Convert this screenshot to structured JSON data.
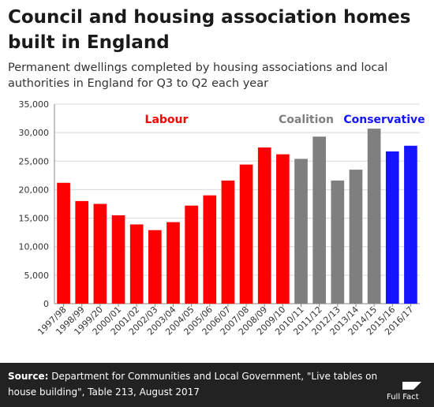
{
  "title": "Council and housing association homes built in England",
  "subtitle": "Permanent dwellings completed by housing associations and local authorities in England for Q3 to Q2 each year",
  "source": {
    "label": "Source:",
    "text": "Department for Communities and Local Government, \"Live tables on house building\", Table 213, August 2017"
  },
  "logo": {
    "text": "Full Fact"
  },
  "colors": {
    "Labour": "#ff0000",
    "Coalition": "#7f7f7f",
    "Conservative": "#1414ff"
  },
  "chart_data": {
    "type": "bar",
    "title": "",
    "xlabel": "",
    "ylabel": "",
    "ylim": [
      0,
      35000
    ],
    "yticks": [
      0,
      5000,
      10000,
      15000,
      20000,
      25000,
      30000,
      35000
    ],
    "ytick_labels": [
      "0",
      "5,000",
      "10,000",
      "15,000",
      "20,000",
      "25,000",
      "30,000",
      "35,000"
    ],
    "grid": "horizontal",
    "categories": [
      "1997/98",
      "1998/99",
      "1999/20",
      "2000/01",
      "2001/02",
      "2002/03",
      "2003/04",
      "2004/05",
      "2005/06",
      "2006/07",
      "2007/08",
      "2008/09",
      "2009/10",
      "2010/11",
      "2011/12",
      "2012/13",
      "2013/14",
      "2014/15",
      "2015/16",
      "2016/17"
    ],
    "values": [
      21200,
      18000,
      17500,
      15500,
      13900,
      12900,
      14300,
      17200,
      19000,
      21600,
      24400,
      27400,
      26200,
      25400,
      29300,
      21600,
      23500,
      30700,
      26700,
      27700
    ],
    "groups": [
      "Labour",
      "Labour",
      "Labour",
      "Labour",
      "Labour",
      "Labour",
      "Labour",
      "Labour",
      "Labour",
      "Labour",
      "Labour",
      "Labour",
      "Labour",
      "Coalition",
      "Coalition",
      "Coalition",
      "Coalition",
      "Coalition",
      "Conservative",
      "Conservative"
    ],
    "annotations": [
      {
        "text": "Labour",
        "group": "Labour"
      },
      {
        "text": "Coalition",
        "group": "Coalition"
      },
      {
        "text": "Conservative",
        "group": "Conservative"
      }
    ]
  }
}
